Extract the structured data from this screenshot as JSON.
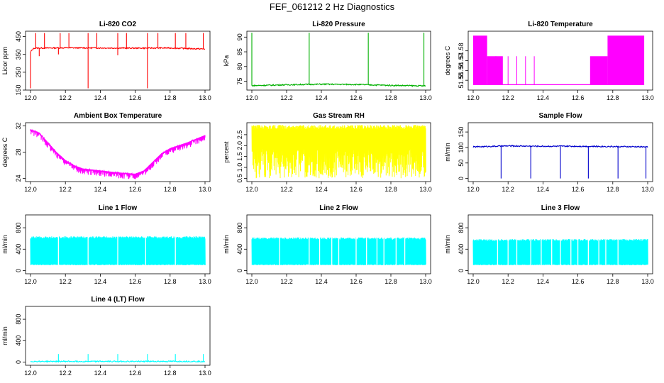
{
  "figure": {
    "title": "FEF_061212  2 Hz Diagnostics"
  },
  "chart_data": [
    {
      "type": "line",
      "title": "Li-820 CO2",
      "ylabel": "Licor ppm",
      "xlim": [
        12.0,
        13.0
      ],
      "ylim": [
        150,
        480
      ],
      "xticks": [
        "12.0",
        "12.2",
        "12.4",
        "12.6",
        "12.8",
        "13.0"
      ],
      "yticks": [
        {
          "v": 150,
          "t": "150"
        },
        {
          "v": 250,
          "t": "250"
        },
        {
          "v": 350,
          "t": "350"
        },
        {
          "v": 450,
          "t": "450"
        }
      ],
      "color": "#ff0000",
      "pattern": "level",
      "series": [
        {
          "values": [
            [
              12.0,
              365
            ],
            [
              12.02,
              385
            ],
            [
              12.2,
              387
            ],
            [
              12.4,
              386
            ],
            [
              12.6,
              385
            ],
            [
              12.8,
              386
            ],
            [
              13.0,
              380
            ]
          ]
        }
      ],
      "spikes_up": [
        12.03,
        12.08,
        12.17,
        12.22,
        12.33,
        12.38,
        12.5,
        12.55,
        12.67,
        12.73,
        12.83,
        12.89,
        12.99
      ],
      "spike_up_to": 470,
      "spikes_down": [
        [
          12.0,
          160
        ],
        [
          12.33,
          160
        ],
        [
          12.67,
          160
        ],
        [
          12.05,
          340
        ],
        [
          12.5,
          345
        ],
        [
          12.16,
          350
        ]
      ]
    },
    {
      "type": "line",
      "title": "Li-820 Pressure",
      "ylabel": "kPa",
      "xlim": [
        12.0,
        13.0
      ],
      "ylim": [
        72,
        92
      ],
      "xticks": [
        "12.0",
        "12.2",
        "12.4",
        "12.6",
        "12.8",
        "13.0"
      ],
      "yticks": [
        {
          "v": 75,
          "t": "75"
        },
        {
          "v": 80,
          "t": "80"
        },
        {
          "v": 85,
          "t": "85"
        },
        {
          "v": 90,
          "t": "90"
        }
      ],
      "color": "#00b000",
      "pattern": "level",
      "series": [
        {
          "values": [
            [
              12.0,
              73.5
            ],
            [
              12.2,
              73.8
            ],
            [
              12.4,
              74.0
            ],
            [
              12.6,
              73.9
            ],
            [
              12.8,
              73.6
            ],
            [
              13.0,
              73.4
            ]
          ]
        }
      ],
      "spikes_up": [
        12.0,
        12.33,
        12.67,
        12.99
      ],
      "spike_up_to": 91.5,
      "spikes_down": []
    },
    {
      "type": "line",
      "title": "Li-820 Temperature",
      "ylabel": "degrees C",
      "xlim": [
        12.0,
        13.0
      ],
      "ylim": [
        51.54,
        51.6
      ],
      "xticks": [
        "12.0",
        "12.2",
        "12.4",
        "12.6",
        "12.8",
        "13.0"
      ],
      "yticks": [
        {
          "v": 51.55,
          "t": "51.55"
        },
        {
          "v": 51.56,
          "t": "51.56"
        },
        {
          "v": 51.57,
          "t": "51.57"
        },
        {
          "v": 51.58,
          "t": "51.58"
        }
      ],
      "color": "#ff00ff",
      "pattern": "temperature",
      "bands": [
        [
          12.0,
          12.08,
          51.5455,
          51.5955
        ],
        [
          12.08,
          12.17,
          51.5455,
          51.5745
        ],
        [
          12.67,
          12.77,
          51.5455,
          51.5745
        ],
        [
          12.77,
          12.98,
          51.5455,
          51.5955
        ]
      ],
      "lines": [
        12.13,
        12.2,
        12.25,
        12.3,
        12.35
      ],
      "series": [
        {
          "values": [
            [
              12.0,
              51.5455
            ],
            [
              12.98,
              51.5455
            ]
          ]
        }
      ]
    },
    {
      "type": "line",
      "title": "Ambient Box Temperature",
      "ylabel": "degrees C",
      "xlim": [
        12.0,
        13.0
      ],
      "ylim": [
        23.5,
        32.5
      ],
      "xticks": [
        "12.0",
        "12.2",
        "12.4",
        "12.6",
        "12.8",
        "13.0"
      ],
      "yticks": [
        {
          "v": 24,
          "t": "24"
        },
        {
          "v": 28,
          "t": "28"
        },
        {
          "v": 32,
          "t": "32"
        }
      ],
      "color": "#ff00ff",
      "pattern": "noisy",
      "noise": 0.9,
      "series": [
        {
          "values": [
            [
              12.0,
              31.5
            ],
            [
              12.05,
              31.0
            ],
            [
              12.1,
              29.5
            ],
            [
              12.15,
              28.0
            ],
            [
              12.2,
              26.8
            ],
            [
              12.25,
              26.0
            ],
            [
              12.3,
              25.5
            ],
            [
              12.4,
              25.2
            ],
            [
              12.5,
              24.9
            ],
            [
              12.6,
              24.7
            ],
            [
              12.65,
              25.2
            ],
            [
              12.7,
              26.5
            ],
            [
              12.75,
              27.8
            ],
            [
              12.8,
              28.6
            ],
            [
              12.9,
              29.5
            ],
            [
              13.0,
              30.6
            ]
          ]
        }
      ]
    },
    {
      "type": "line",
      "title": "Gas Stream RH",
      "ylabel": "percent",
      "xlim": [
        12.0,
        13.0
      ],
      "ylim": [
        0.35,
        3.05
      ],
      "xticks": [
        "12.0",
        "12.2",
        "12.4",
        "12.6",
        "12.8",
        "13.0"
      ],
      "yticks": [
        {
          "v": 0.5,
          "t": "0.5"
        },
        {
          "v": 1.0,
          "t": "1.0"
        },
        {
          "v": 1.5,
          "t": "1.5"
        },
        {
          "v": 2.0,
          "t": "2.0"
        },
        {
          "v": 2.5,
          "t": "2.5"
        }
      ],
      "color": "#ffff00",
      "pattern": "band",
      "band": [
        0.5,
        2.95
      ],
      "series": [
        {
          "values": [
            [
              12.0,
              1.8
            ],
            [
              13.0,
              1.8
            ]
          ]
        }
      ]
    },
    {
      "type": "line",
      "title": "Sample Flow",
      "ylabel": "ml/min",
      "xlim": [
        12.0,
        13.0
      ],
      "ylim": [
        -10,
        180
      ],
      "xticks": [
        "12.0",
        "12.2",
        "12.4",
        "12.6",
        "12.8",
        "13.0"
      ],
      "yticks": [
        {
          "v": 0,
          "t": "0"
        },
        {
          "v": 50,
          "t": "50"
        },
        {
          "v": 100,
          "t": "100"
        },
        {
          "v": 150,
          "t": "150"
        }
      ],
      "color": "#0000cc",
      "pattern": "level",
      "series": [
        {
          "values": [
            [
              12.0,
              102
            ],
            [
              12.2,
              105
            ],
            [
              12.4,
              104
            ],
            [
              12.6,
              104
            ],
            [
              12.8,
              103
            ],
            [
              13.0,
              102
            ]
          ]
        }
      ],
      "spikes_up": [],
      "spike_up_to": 0,
      "spikes_down": [
        [
          12.16,
          0
        ],
        [
          12.33,
          0
        ],
        [
          12.5,
          0
        ],
        [
          12.66,
          0
        ],
        [
          12.83,
          0
        ],
        [
          12.99,
          0
        ]
      ]
    },
    {
      "type": "line",
      "title": "Line 1 Flow",
      "ylabel": "ml/min",
      "xlim": [
        12.0,
        13.0
      ],
      "ylim": [
        -60,
        1040
      ],
      "xticks": [
        "12.0",
        "12.2",
        "12.4",
        "12.6",
        "12.8",
        "13.0"
      ],
      "yticks": [
        {
          "v": 0,
          "t": "0"
        },
        {
          "v": 400,
          "t": "400"
        },
        {
          "v": 800,
          "t": "800"
        }
      ],
      "color": "#00ffff",
      "pattern": "band",
      "band": [
        100,
        640
      ],
      "gaps": [
        12.16,
        12.33,
        12.5,
        12.66,
        12.83
      ],
      "series": [
        {
          "values": [
            [
              12.0,
              400
            ],
            [
              13.0,
              400
            ]
          ]
        }
      ]
    },
    {
      "type": "line",
      "title": "Line 2 Flow",
      "ylabel": "ml/min",
      "xlim": [
        12.0,
        13.0
      ],
      "ylim": [
        -60,
        1040
      ],
      "xticks": [
        "12.0",
        "12.2",
        "12.4",
        "12.6",
        "12.8",
        "13.0"
      ],
      "yticks": [
        {
          "v": 0,
          "t": "0"
        },
        {
          "v": 400,
          "t": "400"
        },
        {
          "v": 800,
          "t": "800"
        }
      ],
      "color": "#00ffff",
      "pattern": "band",
      "band": [
        100,
        620
      ],
      "gaps": [
        12.16,
        12.33,
        12.39,
        12.46,
        12.5,
        12.6,
        12.66,
        12.72,
        12.76,
        12.83,
        12.88
      ],
      "series": [
        {
          "values": [
            [
              12.0,
              400
            ],
            [
              13.0,
              400
            ]
          ]
        }
      ]
    },
    {
      "type": "line",
      "title": "Line 3 Flow",
      "ylabel": "ml/min",
      "xlim": [
        12.0,
        13.0
      ],
      "ylim": [
        -60,
        1040
      ],
      "xticks": [
        "12.0",
        "12.2",
        "12.4",
        "12.6",
        "12.8",
        "13.0"
      ],
      "yticks": [
        {
          "v": 0,
          "t": "0"
        },
        {
          "v": 400,
          "t": "400"
        },
        {
          "v": 800,
          "t": "800"
        }
      ],
      "color": "#00ffff",
      "pattern": "band",
      "band": [
        100,
        590
      ],
      "gaps": [
        12.14,
        12.2,
        12.25,
        12.33,
        12.39,
        12.45,
        12.5,
        12.56,
        12.6,
        12.66,
        12.72,
        12.76,
        12.83
      ],
      "series": [
        {
          "values": [
            [
              12.0,
              400
            ],
            [
              13.0,
              400
            ]
          ]
        }
      ]
    },
    {
      "type": "line",
      "title": "Line 4 (LT) Flow",
      "ylabel": "ml/min",
      "xlim": [
        12.0,
        13.0
      ],
      "ylim": [
        -60,
        1040
      ],
      "xticks": [
        "12.0",
        "12.2",
        "12.4",
        "12.6",
        "12.8",
        "13.0"
      ],
      "yticks": [
        {
          "v": 0,
          "t": "0"
        },
        {
          "v": 400,
          "t": "400"
        },
        {
          "v": 800,
          "t": "800"
        }
      ],
      "color": "#00ffff",
      "pattern": "level",
      "series": [
        {
          "values": [
            [
              12.0,
              12
            ],
            [
              13.0,
              12
            ]
          ]
        }
      ],
      "spikes_up": [
        12.16,
        12.33,
        12.5,
        12.67,
        12.83,
        12.99
      ],
      "spike_up_to": 150,
      "spikes_down": []
    }
  ]
}
